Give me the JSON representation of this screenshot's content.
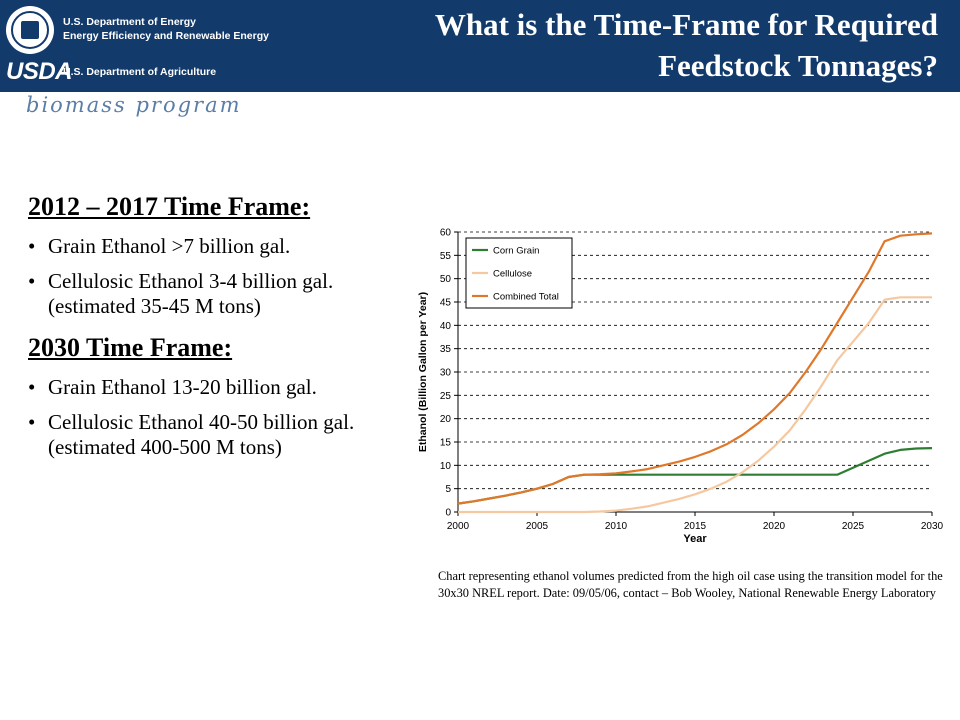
{
  "header": {
    "doe_line1": "U.S. Department of Energy",
    "doe_line2": "Energy Efficiency and Renewable Energy",
    "usda_mark": "USDA",
    "usda_dept": "U.S. Department of Agriculture",
    "program": "biomass program",
    "title_line1": "What is the Time-Frame for  Required",
    "title_line2": "Feedstock Tonnages?"
  },
  "left_panel": {
    "section1_title": "2012 – 2017 Time Frame:",
    "section1_bullets": [
      "Grain Ethanol >7 billion gal.",
      "Cellulosic Ethanol 3-4 billion gal. (estimated 35-45 M tons)"
    ],
    "section2_title": "2030 Time Frame:",
    "section2_bullets": [
      "Grain Ethanol 13-20 billion gal.",
      "Cellulosic Ethanol 40-50 billion gal. (estimated 400-500 M tons)"
    ],
    "bullet_glyph": "•"
  },
  "caption": "Chart representing ethanol volumes predicted from the high oil case using the transition model for the 30x30 NREL report.  Date: 09/05/06, contact – Bob Wooley, National Renewable Energy Laboratory",
  "colors": {
    "header_bg": "#123a6b",
    "corn_grain": "#2e7d32",
    "cellulose": "#f5c8a0",
    "combined_total": "#e0782b"
  },
  "chart_data": {
    "type": "line",
    "xlabel": "Year",
    "ylabel": "Ethanol (Billion Gallon per Year)",
    "xlim": [
      2000,
      2030
    ],
    "ylim": [
      0,
      60
    ],
    "x_ticks": [
      2000,
      2005,
      2010,
      2015,
      2020,
      2025,
      2030
    ],
    "y_ticks": [
      0,
      5,
      10,
      15,
      20,
      25,
      30,
      35,
      40,
      45,
      50,
      55,
      60
    ],
    "grid": "horizontal dashed",
    "legend_position": "top-left",
    "x": [
      2000,
      2001,
      2002,
      2003,
      2004,
      2005,
      2006,
      2007,
      2008,
      2009,
      2010,
      2011,
      2012,
      2013,
      2014,
      2015,
      2016,
      2017,
      2018,
      2019,
      2020,
      2021,
      2022,
      2023,
      2024,
      2025,
      2026,
      2027,
      2028,
      2029,
      2030
    ],
    "series": [
      {
        "name": "Corn Grain",
        "color": "#2e7d32",
        "values": [
          1.8,
          2.3,
          2.9,
          3.5,
          4.2,
          5.0,
          6.0,
          7.5,
          8.0,
          8.0,
          8.0,
          8.0,
          8.0,
          8.0,
          8.0,
          8.0,
          8.0,
          8.0,
          8.0,
          8.0,
          8.0,
          8.0,
          8.0,
          8.0,
          8.0,
          9.5,
          11.0,
          12.5,
          13.3,
          13.6,
          13.7
        ]
      },
      {
        "name": "Cellulose",
        "color": "#f5c8a0",
        "values": [
          0,
          0,
          0,
          0,
          0,
          0,
          0,
          0,
          0,
          0.1,
          0.3,
          0.7,
          1.2,
          2.0,
          2.8,
          3.8,
          5.0,
          6.5,
          8.5,
          11.0,
          14.0,
          17.5,
          22.0,
          27.0,
          32.5,
          36.5,
          40.5,
          45.5,
          46.0,
          46.0,
          46.0
        ]
      },
      {
        "name": "Combined Total",
        "color": "#e0782b",
        "values": [
          1.8,
          2.3,
          2.9,
          3.5,
          4.2,
          5.0,
          6.0,
          7.5,
          8.0,
          8.1,
          8.3,
          8.7,
          9.2,
          10.0,
          10.8,
          11.8,
          13.0,
          14.5,
          16.5,
          19.0,
          22.0,
          25.5,
          30.0,
          35.0,
          40.5,
          46.0,
          51.5,
          58.0,
          59.2,
          59.5,
          59.7
        ]
      }
    ]
  }
}
